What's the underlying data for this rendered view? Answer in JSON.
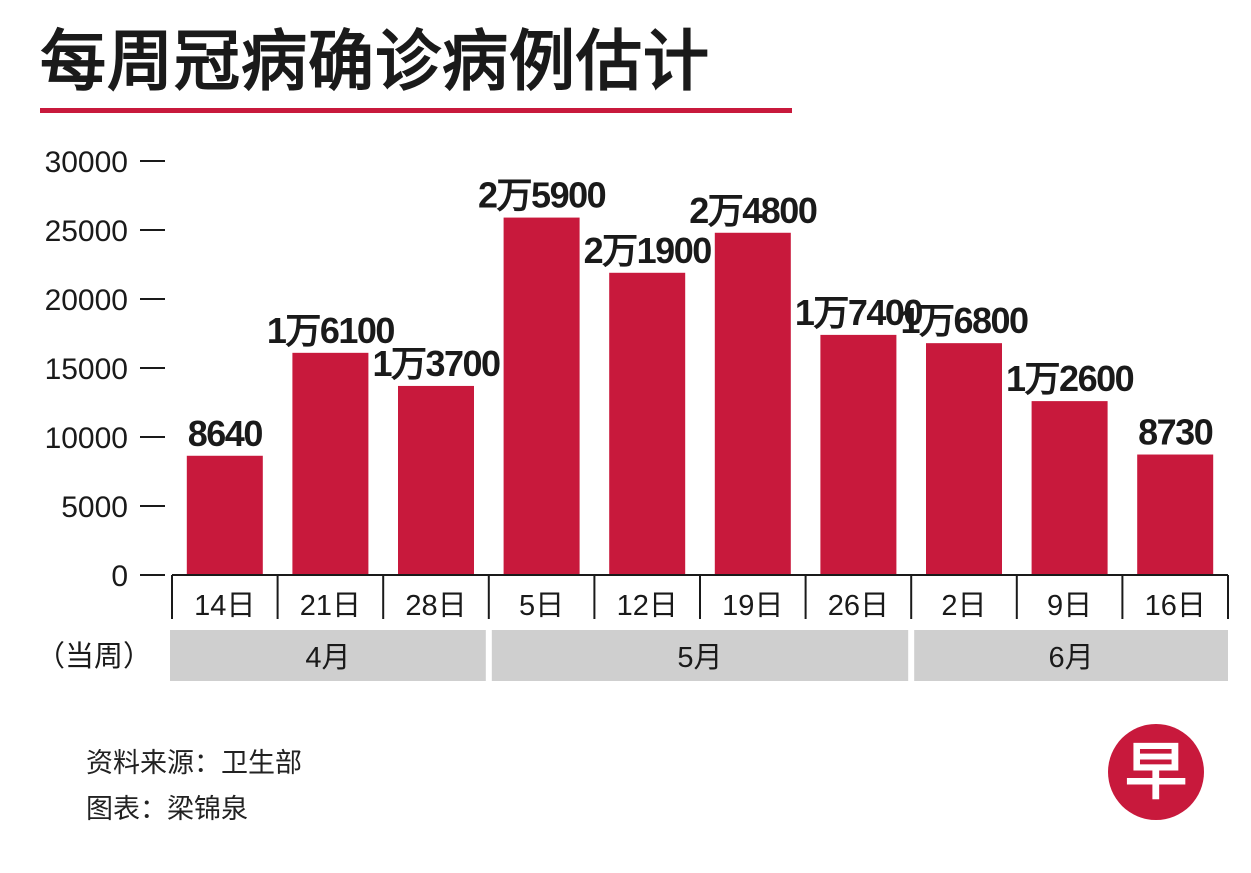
{
  "title": "每周冠病确诊病例估计",
  "week_note": "（当周）",
  "source": "资料来源：卫生部",
  "credit": "图表：梁锦泉",
  "logo_char": "早",
  "colors": {
    "bar": "#c8193c",
    "accent_rule": "#c8193c",
    "period_band": "#cfcfcf",
    "axis": "#1a1a1a",
    "logo": "#c8193c"
  },
  "chart_data": {
    "type": "bar",
    "title": "每周冠病确诊病例估计",
    "xlabel": "",
    "ylabel": "",
    "ylim": [
      0,
      30000
    ],
    "yticks": [
      0,
      5000,
      10000,
      15000,
      20000,
      25000,
      30000
    ],
    "grid": false,
    "categories": [
      "14日",
      "21日",
      "28日",
      "5日",
      "12日",
      "19日",
      "26日",
      "2日",
      "9日",
      "16日"
    ],
    "values": [
      8640,
      16100,
      13700,
      25900,
      21900,
      24800,
      17400,
      16800,
      12600,
      8730
    ],
    "data_labels": [
      "8640",
      "1万6100",
      "1万3700",
      "2万5900",
      "2万1900",
      "2万4800",
      "1万7400",
      "1万6800",
      "1万2600",
      "8730"
    ],
    "periods": [
      {
        "label": "4月",
        "first": 0,
        "last": 2
      },
      {
        "label": "5月",
        "first": 3,
        "last": 6
      },
      {
        "label": "6月",
        "first": 7,
        "last": 9
      }
    ]
  }
}
